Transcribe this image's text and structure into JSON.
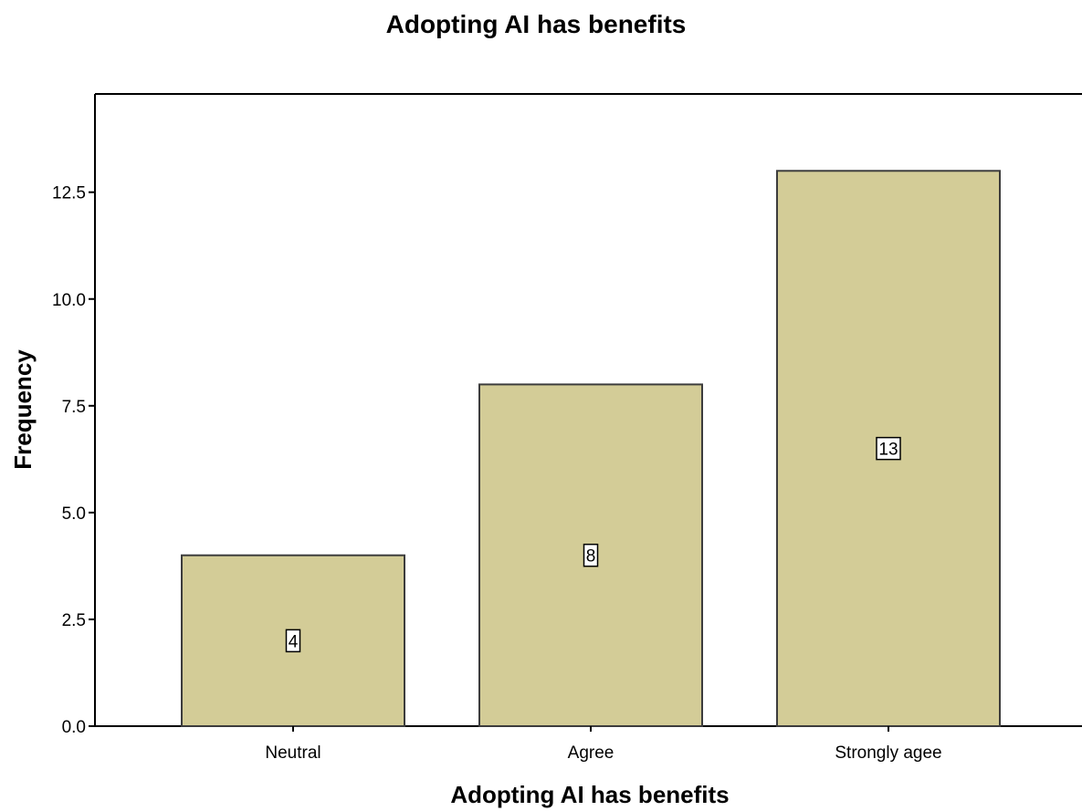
{
  "chart_data": {
    "type": "bar",
    "title": "Adopting AI has benefits",
    "xlabel": "Adopting AI has benefits",
    "ylabel": "Frequency",
    "categories": [
      "Neutral",
      "Agree",
      "Strongly agee"
    ],
    "values": [
      4,
      8,
      13
    ],
    "data_labels": [
      "4",
      "8",
      "13"
    ],
    "ylim": [
      0,
      14.8
    ],
    "yticks": [
      0.0,
      2.5,
      5.0,
      7.5,
      10.0,
      12.5
    ],
    "ytick_labels": [
      "0.0",
      "2.5",
      "5.0",
      "7.5",
      "10.0",
      "12.5"
    ],
    "grid": false,
    "legend": "none",
    "colors": {
      "bar_fill": "#D3CC97",
      "bar_stroke": "#3c3c3c",
      "axis": "#000000",
      "label_box": "#ffffff"
    }
  }
}
